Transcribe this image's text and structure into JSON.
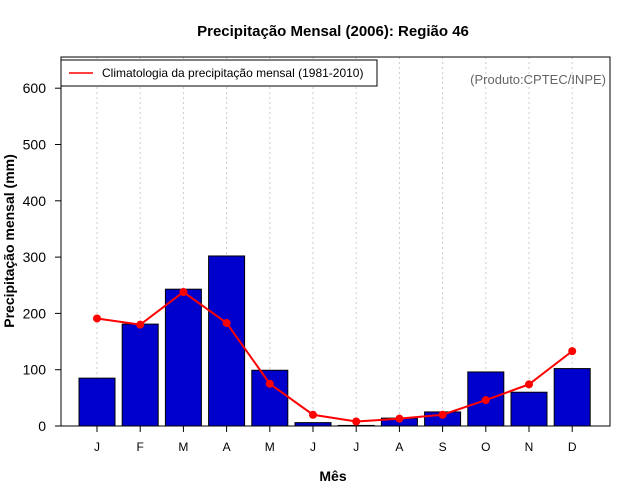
{
  "chart_data": {
    "type": "bar",
    "title": "Precipitação Mensal (2006): Região 46",
    "xlabel": "Mês",
    "ylabel": "Precipitação mensal (mm)",
    "categories": [
      "J",
      "F",
      "M",
      "A",
      "M",
      "J",
      "J",
      "A",
      "S",
      "O",
      "N",
      "D"
    ],
    "series": [
      {
        "name": "Precipitação mensal (2006)",
        "kind": "bar",
        "color": "#0000cc",
        "values": [
          85,
          181,
          243,
          302,
          99,
          6,
          1,
          14,
          25,
          96,
          60,
          102
        ]
      },
      {
        "name": "Climatologia da precipitação mensal (1981-2010)",
        "kind": "line",
        "color": "#ff0000",
        "values": [
          191,
          180,
          238,
          183,
          75,
          20,
          8,
          13,
          20,
          46,
          74,
          133
        ]
      }
    ],
    "ylim": [
      0,
      650
    ],
    "yticks": [
      0,
      100,
      200,
      300,
      400,
      500,
      600
    ],
    "grid": "vertical dotted",
    "legend": {
      "position": "top-left",
      "entries": [
        "Climatologia da precipitação mensal (1981-2010)"
      ]
    },
    "annotation": "(Produto:CPTEC/INPE)"
  }
}
